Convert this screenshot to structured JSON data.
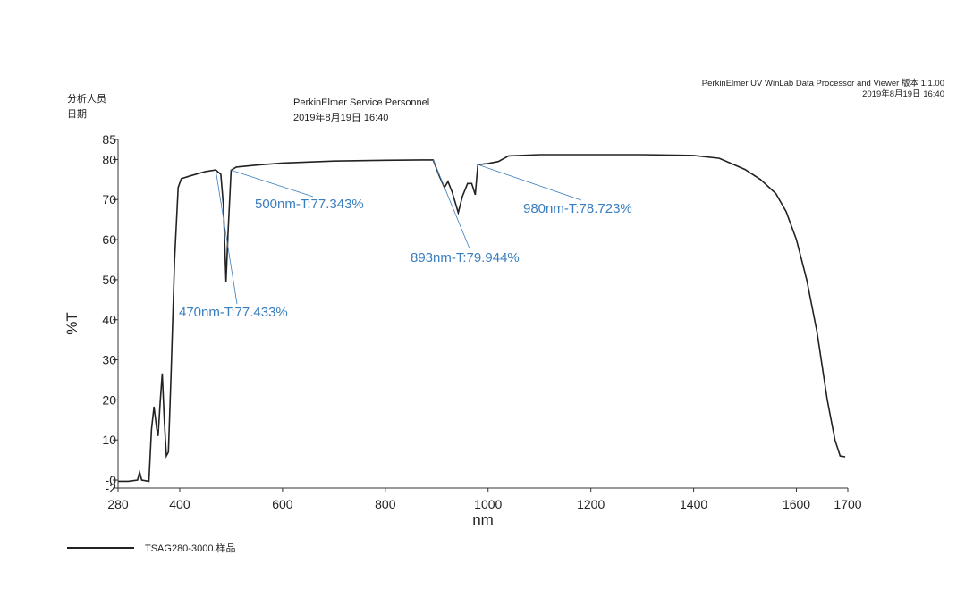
{
  "header": {
    "analyst_label": "分析人员",
    "date_label": "日期",
    "analyst": "PerkinElmer Service Personnel",
    "date": "2019年8月19日 16:40",
    "software": "PerkinElmer UV WinLab Data Processor and Viewer 版本 1.1.00",
    "print_date": "2019年8月19日 16:40"
  },
  "chart_data": {
    "type": "line",
    "xlabel": "nm",
    "ylabel": "%T",
    "x": [
      280,
      300,
      318,
      322,
      326,
      340,
      345,
      350,
      355,
      358,
      362,
      366,
      370,
      374,
      378,
      383,
      390,
      397,
      403,
      420,
      450,
      470,
      480,
      485,
      490,
      494,
      500,
      510,
      550,
      600,
      700,
      800,
      870,
      893,
      905,
      915,
      922,
      930,
      942,
      950,
      960,
      968,
      975,
      980,
      1000,
      1020,
      1040,
      1100,
      1200,
      1300,
      1400,
      1450,
      1500,
      1530,
      1560,
      1580,
      1600,
      1620,
      1640,
      1660,
      1675,
      1685,
      1695
    ],
    "series": [
      {
        "name": "TSAG280-3000.样品",
        "color": "#222222",
        "values": [
          -0.3,
          -0.3,
          0,
          2,
          0,
          -0.3,
          12.7,
          18.3,
          13,
          11,
          19.4,
          26.6,
          15,
          6,
          7,
          26,
          55,
          73,
          75.2,
          75.9,
          77,
          77.4,
          76.3,
          68.5,
          49.5,
          61.8,
          77.3,
          78.1,
          78.6,
          79.1,
          79.6,
          79.8,
          79.9,
          79.9,
          75.9,
          73,
          74.5,
          71.9,
          66.7,
          70.8,
          74,
          74,
          71.2,
          78.7,
          79,
          79.5,
          80.9,
          81.2,
          81.2,
          81.2,
          81,
          80.3,
          77.5,
          75,
          71.5,
          67,
          60,
          50,
          37,
          20,
          10,
          6,
          5.8
        ]
      }
    ],
    "annotations": [
      {
        "text": "470nm-T:77.433%",
        "x": 470,
        "y": 77.433
      },
      {
        "text": "500nm-T:77.343%",
        "x": 500,
        "y": 77.343
      },
      {
        "text": "893nm-T:79.944%",
        "x": 893,
        "y": 79.944
      },
      {
        "text": "980nm-T:78.723%",
        "x": 980,
        "y": 78.723
      }
    ],
    "annotation_color": "#3a7ebf",
    "xlim": [
      280,
      1700
    ],
    "ylim": [
      -2,
      85
    ],
    "xticks": [
      280,
      400,
      600,
      800,
      1000,
      1200,
      1400,
      1600,
      1700
    ],
    "yticks": [
      -2,
      {
        "value": 0,
        "label": "-0"
      },
      10,
      20,
      30,
      40,
      50,
      60,
      70,
      80,
      85
    ]
  }
}
